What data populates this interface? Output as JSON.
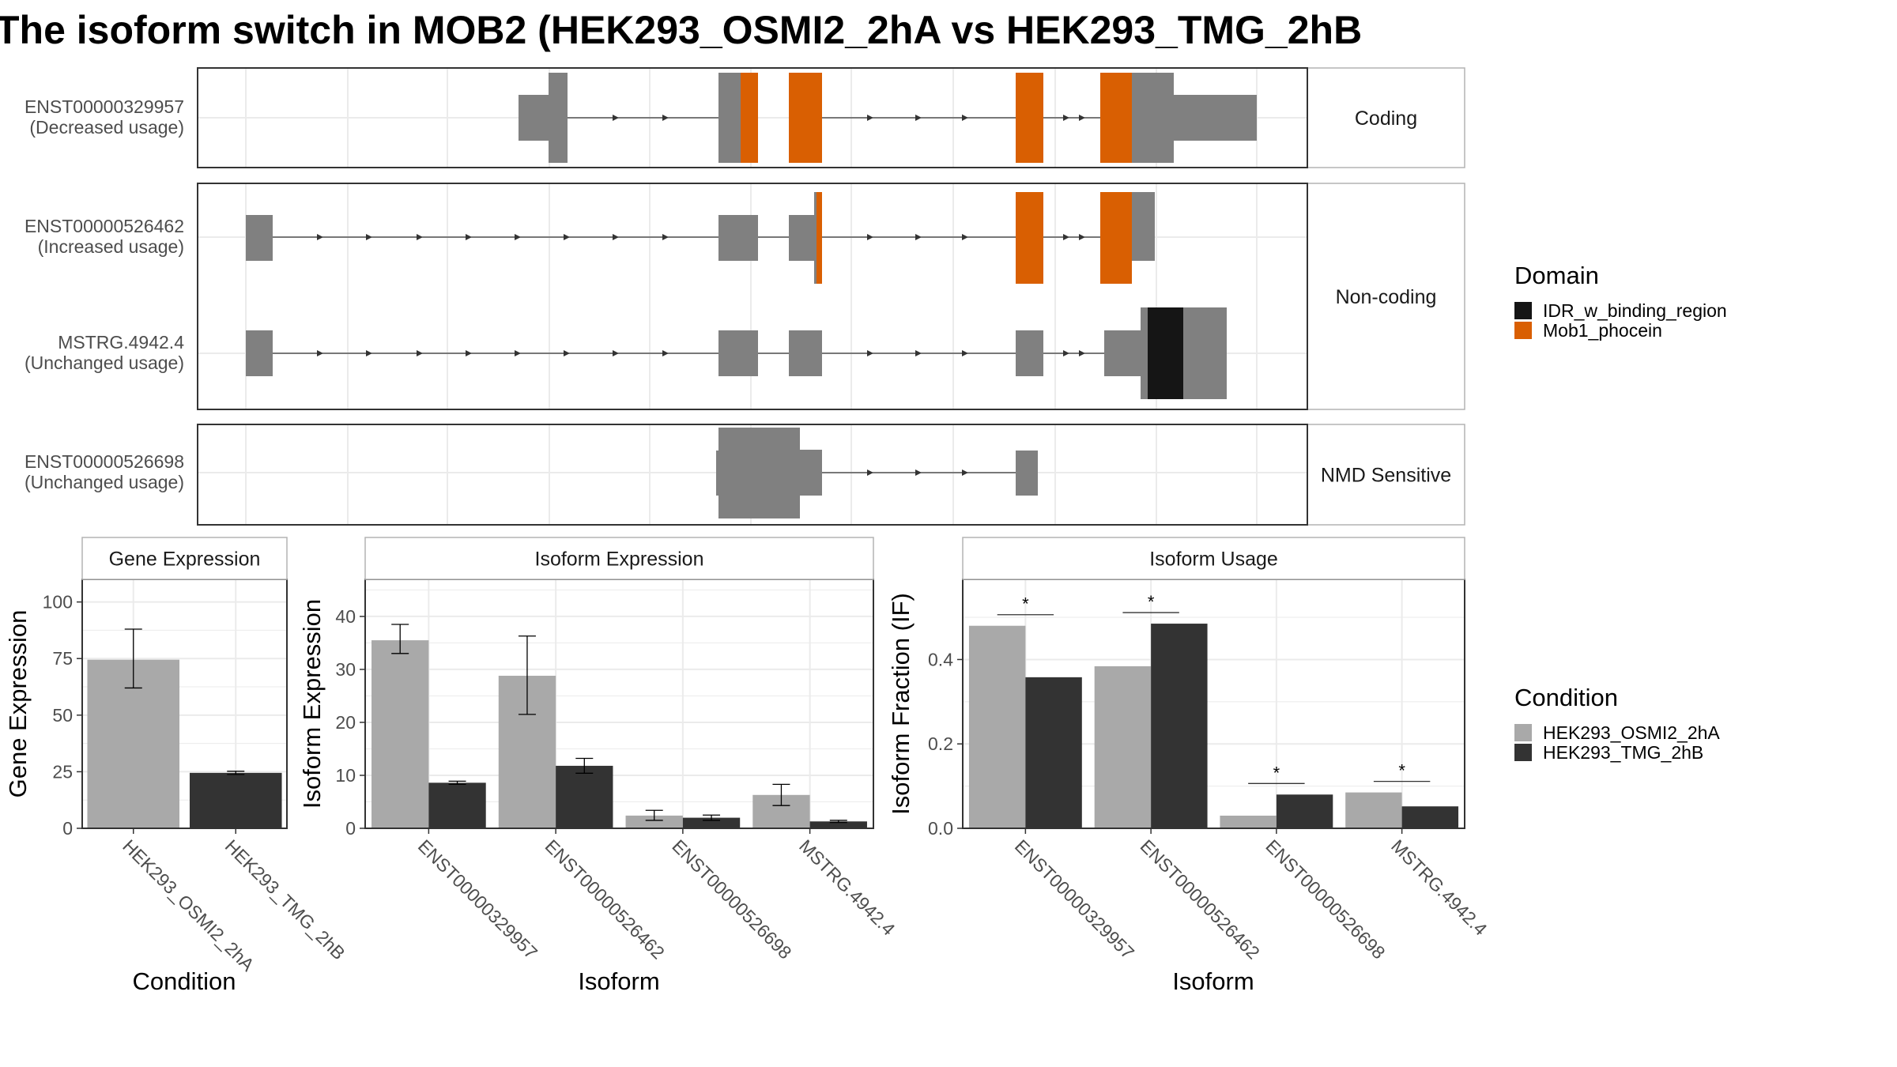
{
  "title": "The isoform switch in MOB2 (HEK293_OSMI2_2hA vs HEK293_TMG_2hB",
  "colors": {
    "exon": "#808080",
    "domain_idr": "#151515",
    "domain_mob1": "#D95F02",
    "cond_a": "#A9A9A9",
    "cond_b": "#333333",
    "grid": "#EBEBEB",
    "strip_border": "#B3B3B3",
    "panel_border": "#333333"
  },
  "structure": {
    "panels": [
      {
        "label": "Coding",
        "rows": [
          {
            "id": "ENST00000329957",
            "usage": "(Decreased usage)"
          }
        ]
      },
      {
        "label": "Non-coding",
        "rows": [
          {
            "id": "ENST00000526462",
            "usage": "(Increased usage)"
          },
          {
            "id": "MSTRG.4942.4",
            "usage": "(Unchanged usage)"
          }
        ]
      },
      {
        "label": "NMD Sensitive",
        "rows": [
          {
            "id": "ENST00000526698",
            "usage": "(Unchanged usage)"
          }
        ]
      }
    ],
    "legend_domain": {
      "title": "Domain",
      "items": [
        {
          "label": "IDR_w_binding_region",
          "color": "#151515"
        },
        {
          "label": "Mob1_phocein",
          "color": "#D95F02"
        }
      ]
    }
  },
  "chart_data": [
    {
      "type": "bar",
      "strip": "Gene Expression",
      "xlabel": "Condition",
      "ylabel": "Gene Expression",
      "categories": [
        "HEK293_OSMI2_2hA",
        "HEK293_TMG_2hB"
      ],
      "values": [
        74.5,
        24.5
      ],
      "errors": [
        [
          62,
          88
        ],
        [
          23.8,
          25.2
        ]
      ],
      "ylim": [
        0,
        110
      ],
      "yticks": [
        0,
        25,
        50,
        75,
        100
      ]
    },
    {
      "type": "bar",
      "strip": "Isoform Expression",
      "xlabel": "Isoform",
      "ylabel": "Isoform Expression",
      "categories": [
        "ENST00000329957",
        "ENST00000526462",
        "ENST00000526698",
        "MSTRG.4942.4"
      ],
      "series": [
        {
          "name": "HEK293_OSMI2_2hA",
          "values": [
            35.5,
            28.8,
            2.4,
            6.3
          ],
          "errors": [
            [
              33,
              38.5
            ],
            [
              21.5,
              36.3
            ],
            [
              1.5,
              3.4
            ],
            [
              4.3,
              8.3
            ]
          ]
        },
        {
          "name": "HEK293_TMG_2hB",
          "values": [
            8.6,
            11.8,
            2.0,
            1.3
          ],
          "errors": [
            [
              8.3,
              8.9
            ],
            [
              10.4,
              13.2
            ],
            [
              1.5,
              2.5
            ],
            [
              1.1,
              1.5
            ]
          ]
        }
      ],
      "ylim": [
        0,
        47
      ],
      "yticks": [
        0,
        10,
        20,
        30,
        40
      ]
    },
    {
      "type": "bar",
      "strip": "Isoform Usage",
      "xlabel": "Isoform",
      "ylabel": "Isoform Fraction (IF)",
      "categories": [
        "ENST00000329957",
        "ENST00000526462",
        "ENST00000526698",
        "MSTRG.4942.4"
      ],
      "series": [
        {
          "name": "HEK293_OSMI2_2hA",
          "values": [
            0.48,
            0.384,
            0.03,
            0.085
          ]
        },
        {
          "name": "HEK293_TMG_2hB",
          "values": [
            0.358,
            0.485,
            0.08,
            0.052
          ]
        }
      ],
      "significance": [
        "*",
        "*",
        "*",
        "*"
      ],
      "ylim": [
        0,
        0.59
      ],
      "yticks": [
        0.0,
        0.2,
        0.4
      ],
      "ytick_labels": [
        "0.0",
        "0.2",
        "0.4"
      ]
    }
  ],
  "legend_condition": {
    "title": "Condition",
    "items": [
      {
        "label": "HEK293_OSMI2_2hA",
        "color": "#A9A9A9"
      },
      {
        "label": "HEK293_TMG_2hB",
        "color": "#333333"
      }
    ]
  }
}
